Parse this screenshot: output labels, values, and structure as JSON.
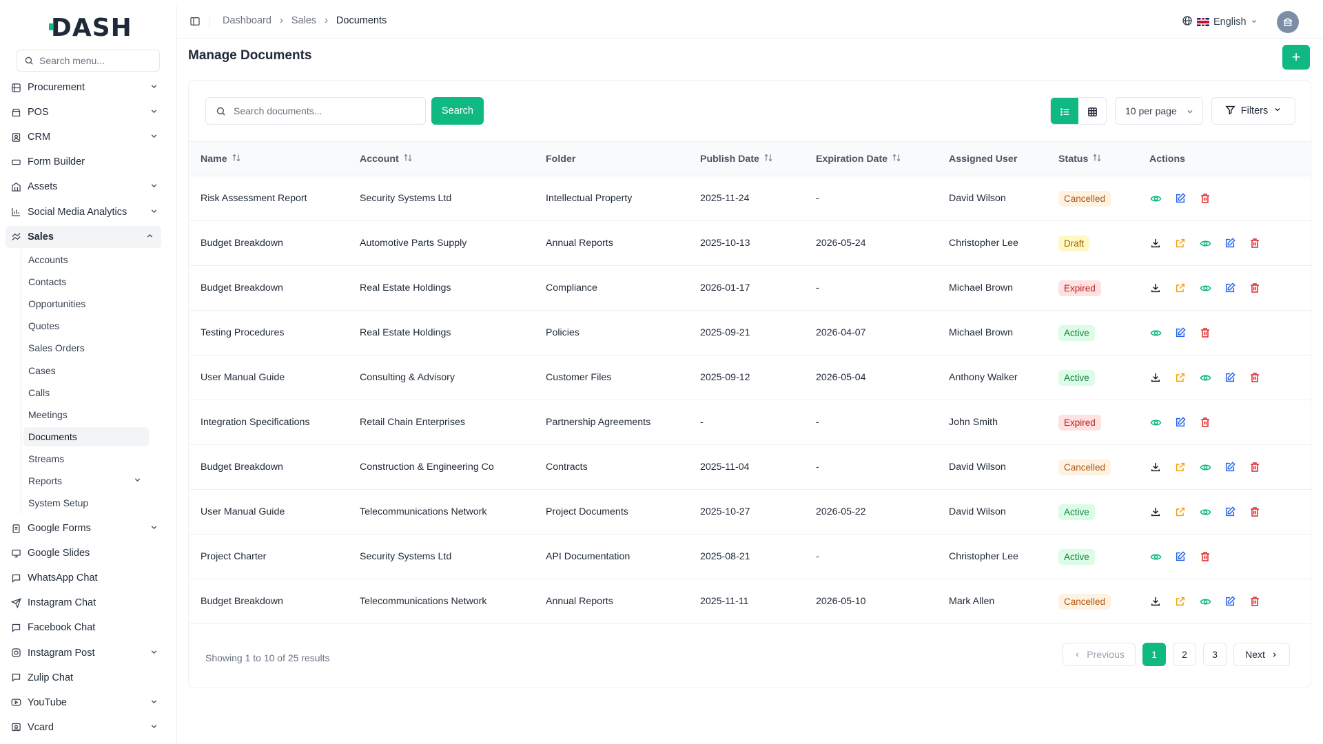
{
  "brand": {
    "logo": "DASH",
    "accent": "#10b981"
  },
  "sidebar": {
    "search_placeholder": "Search menu...",
    "items": [
      {
        "label": "Procurement",
        "icon": "procurement-icon",
        "chevron": true
      },
      {
        "label": "POS",
        "icon": "pos-icon",
        "chevron": true
      },
      {
        "label": "CRM",
        "icon": "crm-icon",
        "chevron": true
      },
      {
        "label": "Form Builder",
        "icon": "form-builder-icon",
        "chevron": false
      },
      {
        "label": "Assets",
        "icon": "assets-icon",
        "chevron": true
      },
      {
        "label": "Social Media Analytics",
        "icon": "analytics-icon",
        "chevron": true
      },
      {
        "label": "Sales",
        "icon": "sales-icon",
        "chevron": true,
        "expanded": true
      }
    ],
    "sales_sub": [
      {
        "label": "Accounts"
      },
      {
        "label": "Contacts"
      },
      {
        "label": "Opportunities"
      },
      {
        "label": "Quotes"
      },
      {
        "label": "Sales Orders"
      },
      {
        "label": "Cases"
      },
      {
        "label": "Calls"
      },
      {
        "label": "Meetings"
      },
      {
        "label": "Documents",
        "active": true
      },
      {
        "label": "Streams"
      },
      {
        "label": "Reports",
        "chevron": true
      },
      {
        "label": "System Setup"
      }
    ],
    "items_after": [
      {
        "label": "Google Forms",
        "icon": "google-forms-icon",
        "chevron": true
      },
      {
        "label": "Google Slides",
        "icon": "google-slides-icon",
        "chevron": false
      },
      {
        "label": "WhatsApp Chat",
        "icon": "chat-icon",
        "chevron": false
      },
      {
        "label": "Instagram Chat",
        "icon": "send-icon",
        "chevron": false
      },
      {
        "label": "Facebook Chat",
        "icon": "chat-icon",
        "chevron": false
      },
      {
        "label": "Instagram Post",
        "icon": "instagram-icon",
        "chevron": true
      },
      {
        "label": "Zulip Chat",
        "icon": "chat-icon",
        "chevron": false
      },
      {
        "label": "YouTube",
        "icon": "youtube-icon",
        "chevron": true
      },
      {
        "label": "Vcard",
        "icon": "vcard-icon",
        "chevron": true
      }
    ]
  },
  "header": {
    "breadcrumbs": [
      "Dashboard",
      "Sales",
      "Documents"
    ],
    "language": "English"
  },
  "page": {
    "title": "Manage Documents",
    "add_label": "+",
    "search_placeholder": "Search documents...",
    "search_button": "Search",
    "per_page": "10 per page",
    "filters": "Filters"
  },
  "table": {
    "columns": [
      {
        "label": "Name",
        "sortable": true
      },
      {
        "label": "Account",
        "sortable": true
      },
      {
        "label": "Folder",
        "sortable": false
      },
      {
        "label": "Publish Date",
        "sortable": true
      },
      {
        "label": "Expiration Date",
        "sortable": true
      },
      {
        "label": "Assigned User",
        "sortable": false
      },
      {
        "label": "Status",
        "sortable": true
      },
      {
        "label": "Actions",
        "sortable": false
      }
    ],
    "rows": [
      {
        "name": "Risk Assessment Report",
        "account": "Security Systems Ltd",
        "folder": "Intellectual Property",
        "publish": "2025-11-24",
        "expiration": "-",
        "user": "David Wilson",
        "status": "Cancelled",
        "full_actions": false
      },
      {
        "name": "Budget Breakdown",
        "account": "Automotive Parts Supply",
        "folder": "Annual Reports",
        "publish": "2025-10-13",
        "expiration": "2026-05-24",
        "user": "Christopher Lee",
        "status": "Draft",
        "full_actions": true
      },
      {
        "name": "Budget Breakdown",
        "account": "Real Estate Holdings",
        "folder": "Compliance",
        "publish": "2026-01-17",
        "expiration": "-",
        "user": "Michael Brown",
        "status": "Expired",
        "full_actions": true
      },
      {
        "name": "Testing Procedures",
        "account": "Real Estate Holdings",
        "folder": "Policies",
        "publish": "2025-09-21",
        "expiration": "2026-04-07",
        "user": "Michael Brown",
        "status": "Active",
        "full_actions": false
      },
      {
        "name": "User Manual Guide",
        "account": "Consulting & Advisory",
        "folder": "Customer Files",
        "publish": "2025-09-12",
        "expiration": "2026-05-04",
        "user": "Anthony Walker",
        "status": "Active",
        "full_actions": true
      },
      {
        "name": "Integration Specifications",
        "account": "Retail Chain Enterprises",
        "folder": "Partnership Agreements",
        "publish": "-",
        "expiration": "-",
        "user": "John Smith",
        "status": "Expired",
        "full_actions": false
      },
      {
        "name": "Budget Breakdown",
        "account": "Construction & Engineering Co",
        "folder": "Contracts",
        "publish": "2025-11-04",
        "expiration": "-",
        "user": "David Wilson",
        "status": "Cancelled",
        "full_actions": true
      },
      {
        "name": "User Manual Guide",
        "account": "Telecommunications Network",
        "folder": "Project Documents",
        "publish": "2025-10-27",
        "expiration": "2026-05-22",
        "user": "David Wilson",
        "status": "Active",
        "full_actions": true
      },
      {
        "name": "Project Charter",
        "account": "Security Systems Ltd",
        "folder": "API Documentation",
        "publish": "2025-08-21",
        "expiration": "-",
        "user": "Christopher Lee",
        "status": "Active",
        "full_actions": false
      },
      {
        "name": "Budget Breakdown",
        "account": "Telecommunications Network",
        "folder": "Annual Reports",
        "publish": "2025-11-11",
        "expiration": "2026-05-10",
        "user": "Mark Allen",
        "status": "Cancelled",
        "full_actions": true
      }
    ]
  },
  "pagination": {
    "summary": "Showing 1 to 10 of 25 results",
    "previous": "Previous",
    "next": "Next",
    "pages": [
      "1",
      "2",
      "3"
    ],
    "current": "1"
  },
  "colors": {
    "download": "#111827",
    "share": "#f59e0b",
    "view": "#10b981",
    "edit": "#2563eb",
    "delete": "#dc2626"
  }
}
